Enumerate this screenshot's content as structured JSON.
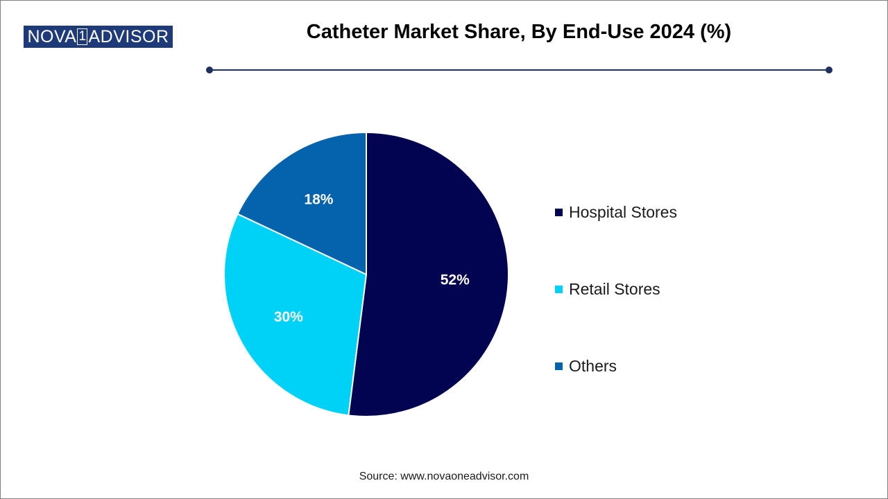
{
  "logo": {
    "part1": "NOVA",
    "part2": "1",
    "part3": "ADVISOR"
  },
  "source": "Source: www.novaoneadvisor.com",
  "chart_data": {
    "type": "pie",
    "title": "Catheter Market Share, By End-Use 2024 (%)",
    "categories": [
      "Hospital Stores",
      "Retail Stores",
      "Others"
    ],
    "values": [
      52,
      30,
      18
    ],
    "labels": [
      "52%",
      "30%",
      "18%"
    ],
    "colors": [
      "#020452",
      "#00d1f7",
      "#0563ad"
    ],
    "start_angle_deg": 0,
    "direction": "clockwise",
    "legend_position": "right"
  }
}
